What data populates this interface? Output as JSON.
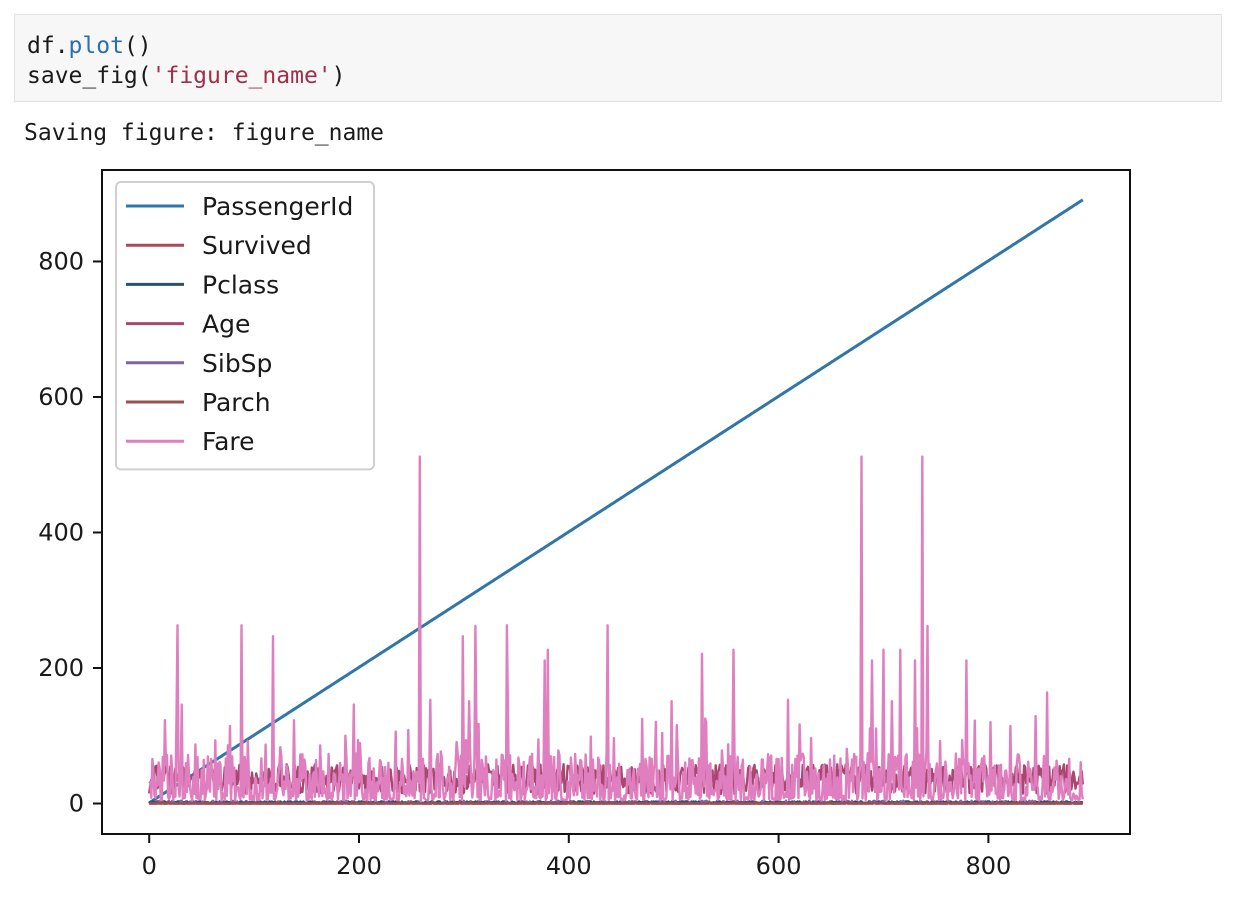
{
  "notebook": {
    "code_lines": [
      {
        "obj": "df.",
        "fn": "plot",
        "rest": "()"
      },
      {
        "prefix": "save_fig(",
        "str": "'figure_name'",
        "suffix": ")"
      }
    ],
    "output_text": "Saving figure: figure_name"
  },
  "chart_data": {
    "type": "line",
    "title": "",
    "xlabel": "",
    "ylabel": "",
    "xlim": [
      -45,
      935
    ],
    "ylim": [
      -45,
      935
    ],
    "x_ticks": [
      0,
      200,
      400,
      600,
      800
    ],
    "y_ticks": [
      0,
      200,
      400,
      600,
      800
    ],
    "grid": false,
    "legend_position": "top-left",
    "x_range": [
      0,
      890
    ],
    "series": [
      {
        "name": "PassengerId",
        "color": "#3176a8",
        "kind": "linear",
        "start": 1,
        "end": 891
      },
      {
        "name": "Survived",
        "color": "#a64a5a",
        "kind": "noisy",
        "low": 0,
        "high": 1
      },
      {
        "name": "Pclass",
        "color": "#2d4f6e",
        "kind": "noisy",
        "low": 1,
        "high": 3
      },
      {
        "name": "Age",
        "color": "#a84870",
        "kind": "noisy",
        "low": 0.42,
        "high": 80
      },
      {
        "name": "SibSp",
        "color": "#7e62a8",
        "kind": "noisy",
        "low": 0,
        "high": 8
      },
      {
        "name": "Parch",
        "color": "#9a5050",
        "kind": "noisy",
        "low": 0,
        "high": 6
      },
      {
        "name": "Fare",
        "color": "#df7fc0",
        "kind": "spiky",
        "low": 0,
        "high": 512,
        "peaks": [
          [
            27,
            263
          ],
          [
            31,
            146
          ],
          [
            88,
            263
          ],
          [
            118,
            247
          ],
          [
            195,
            146
          ],
          [
            258,
            512
          ],
          [
            268,
            153
          ],
          [
            299,
            247
          ],
          [
            305,
            151
          ],
          [
            311,
            262
          ],
          [
            341,
            263
          ],
          [
            377,
            211
          ],
          [
            380,
            227
          ],
          [
            437,
            263
          ],
          [
            498,
            151
          ],
          [
            527,
            221
          ],
          [
            557,
            227
          ],
          [
            609,
            153
          ],
          [
            679,
            512
          ],
          [
            689,
            211
          ],
          [
            700,
            227
          ],
          [
            708,
            151
          ],
          [
            716,
            227
          ],
          [
            730,
            211
          ],
          [
            737,
            512
          ],
          [
            742,
            262
          ],
          [
            779,
            211
          ],
          [
            802,
            120
          ],
          [
            856,
            164
          ]
        ]
      }
    ]
  }
}
